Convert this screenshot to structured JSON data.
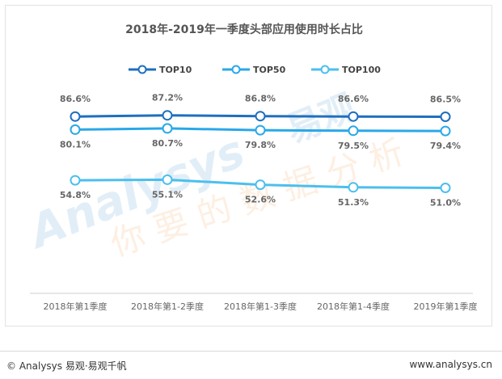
{
  "chart_data": {
    "type": "line",
    "title": "2018年-2019年一季度头部应用使用时长占比",
    "categories": [
      "2018年第1季度",
      "2018年第1-2季度",
      "2018年第1-3季度",
      "2018年第1-4季度",
      "2019年第1季度"
    ],
    "series": [
      {
        "name": "TOP10",
        "values": [
          86.6,
          87.2,
          86.8,
          86.6,
          86.5
        ],
        "labels": [
          "86.6%",
          "87.2%",
          "86.8%",
          "86.6%",
          "86.5%"
        ],
        "color": "#1e6fbf"
      },
      {
        "name": "TOP50",
        "values": [
          80.1,
          80.7,
          79.8,
          79.5,
          79.4
        ],
        "labels": [
          "80.1%",
          "80.7%",
          "79.8%",
          "79.5%",
          "79.4%"
        ],
        "color": "#2aa8e8"
      },
      {
        "name": "TOP100",
        "values": [
          54.8,
          55.1,
          52.6,
          51.3,
          51.0
        ],
        "labels": [
          "54.8%",
          "55.1%",
          "52.6%",
          "51.3%",
          "51.0%"
        ],
        "color": "#4cbfee"
      }
    ],
    "ylim": [
      0,
      100
    ],
    "grid": false,
    "legend_position": "top-center"
  },
  "watermark": {
    "en": "Analysys",
    "cn_brand": "易观",
    "cn_slogan": "你要的数据分析"
  },
  "footer": {
    "left": "© Analysys 易观·易观千帆",
    "right": "www.analysys.cn"
  }
}
